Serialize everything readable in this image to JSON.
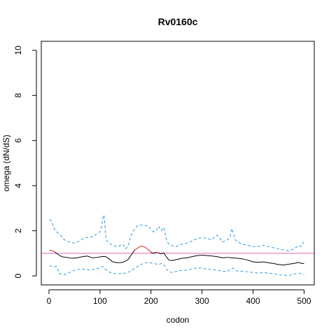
{
  "chart_data": {
    "type": "line",
    "title": "Rv0160c",
    "xlabel": "codon",
    "ylabel": "omega (dN/dS)",
    "xlim": [
      -15,
      520
    ],
    "ylim": [
      -0.4,
      10.4
    ],
    "x_ticks": [
      0,
      100,
      200,
      300,
      400,
      500
    ],
    "y_ticks": [
      0,
      2,
      4,
      6,
      8,
      10
    ],
    "x_tick_labels": [
      "0",
      "100",
      "200",
      "300",
      "400",
      "500"
    ],
    "y_tick_labels": [
      "0",
      "2",
      "4",
      "6",
      "8",
      "10"
    ],
    "grid": false,
    "reference_line": {
      "y": 1,
      "color": "#df65b0"
    },
    "colors": {
      "estimate": "#000000",
      "estimate_above_1": "#e31a1c",
      "bounds": "#3399dd"
    },
    "series": [
      {
        "role": "estimate",
        "style": "solid",
        "x": [
          1,
          8,
          12,
          18,
          25,
          35,
          45,
          55,
          65,
          75,
          85,
          95,
          105,
          112,
          118,
          125,
          135,
          145,
          155,
          162,
          168,
          175,
          180,
          185,
          190,
          195,
          200,
          205,
          210,
          215,
          220,
          225,
          230,
          235,
          240,
          250,
          260,
          270,
          280,
          290,
          300,
          310,
          320,
          330,
          340,
          350,
          360,
          370,
          380,
          390,
          400,
          410,
          420,
          430,
          440,
          450,
          460,
          470,
          480,
          490,
          495,
          500
        ],
        "y": [
          1.15,
          1.1,
          1.05,
          0.95,
          0.85,
          0.82,
          0.78,
          0.8,
          0.85,
          0.88,
          0.8,
          0.82,
          0.86,
          0.85,
          0.75,
          0.62,
          0.58,
          0.6,
          0.72,
          0.95,
          1.15,
          1.25,
          1.32,
          1.3,
          1.25,
          1.15,
          1.05,
          1.0,
          1.05,
          1.02,
          0.98,
          1.02,
          0.85,
          0.7,
          0.68,
          0.72,
          0.78,
          0.8,
          0.85,
          0.9,
          0.92,
          0.9,
          0.88,
          0.85,
          0.8,
          0.82,
          0.8,
          0.78,
          0.75,
          0.7,
          0.62,
          0.6,
          0.62,
          0.58,
          0.55,
          0.5,
          0.48,
          0.52,
          0.55,
          0.6,
          0.55,
          0.55
        ]
      },
      {
        "role": "upper bound",
        "style": "dashed",
        "x": [
          1,
          5,
          10,
          15,
          20,
          25,
          30,
          40,
          50,
          60,
          70,
          80,
          90,
          95,
          100,
          103,
          106,
          108,
          112,
          118,
          125,
          135,
          145,
          150,
          155,
          160,
          168,
          175,
          185,
          195,
          200,
          205,
          210,
          215,
          220,
          225,
          230,
          235,
          240,
          250,
          260,
          270,
          280,
          290,
          300,
          310,
          320,
          325,
          330,
          335,
          340,
          350,
          355,
          358,
          360,
          365,
          370,
          380,
          390,
          400,
          410,
          420,
          430,
          440,
          450,
          460,
          470,
          480,
          490,
          495,
          500
        ],
        "y": [
          2.5,
          2.45,
          2.1,
          1.95,
          1.85,
          1.75,
          1.6,
          1.5,
          1.45,
          1.55,
          1.7,
          1.7,
          1.8,
          1.9,
          1.95,
          2.2,
          2.6,
          2.7,
          1.6,
          1.45,
          1.35,
          1.3,
          1.4,
          1.2,
          1.3,
          1.75,
          2.1,
          2.25,
          2.25,
          2.2,
          2.05,
          1.95,
          2.0,
          2.2,
          2.0,
          2.15,
          1.6,
          1.4,
          1.35,
          1.3,
          1.4,
          1.45,
          1.55,
          1.65,
          1.7,
          1.65,
          1.6,
          1.75,
          1.8,
          1.65,
          1.5,
          1.6,
          1.7,
          2.1,
          2.0,
          1.6,
          1.5,
          1.4,
          1.35,
          1.3,
          1.3,
          1.35,
          1.3,
          1.25,
          1.2,
          1.15,
          1.1,
          1.2,
          1.35,
          1.3,
          1.6
        ]
      },
      {
        "role": "lower bound",
        "style": "dashed",
        "x": [
          1,
          10,
          15,
          20,
          30,
          40,
          50,
          60,
          70,
          80,
          90,
          100,
          105,
          110,
          120,
          130,
          140,
          150,
          160,
          165,
          170,
          175,
          185,
          195,
          205,
          215,
          220,
          225,
          230,
          235,
          240,
          250,
          260,
          270,
          280,
          290,
          300,
          310,
          320,
          330,
          340,
          350,
          360,
          370,
          380,
          390,
          400,
          410,
          420,
          430,
          440,
          450,
          460,
          470,
          480,
          490,
          500
        ],
        "y": [
          0.45,
          0.4,
          0.42,
          0.1,
          0.05,
          0.15,
          0.25,
          0.3,
          0.3,
          0.25,
          0.3,
          0.35,
          0.42,
          0.3,
          0.15,
          0.1,
          0.1,
          0.12,
          0.2,
          0.3,
          0.35,
          0.45,
          0.55,
          0.6,
          0.55,
          0.5,
          0.55,
          0.5,
          0.3,
          0.2,
          0.15,
          0.2,
          0.25,
          0.25,
          0.3,
          0.35,
          0.35,
          0.3,
          0.28,
          0.25,
          0.2,
          0.2,
          0.35,
          0.2,
          0.2,
          0.18,
          0.15,
          0.12,
          0.15,
          0.12,
          0.1,
          0.05,
          0.03,
          0.02,
          0.08,
          0.12,
          0.05
        ]
      }
    ]
  }
}
